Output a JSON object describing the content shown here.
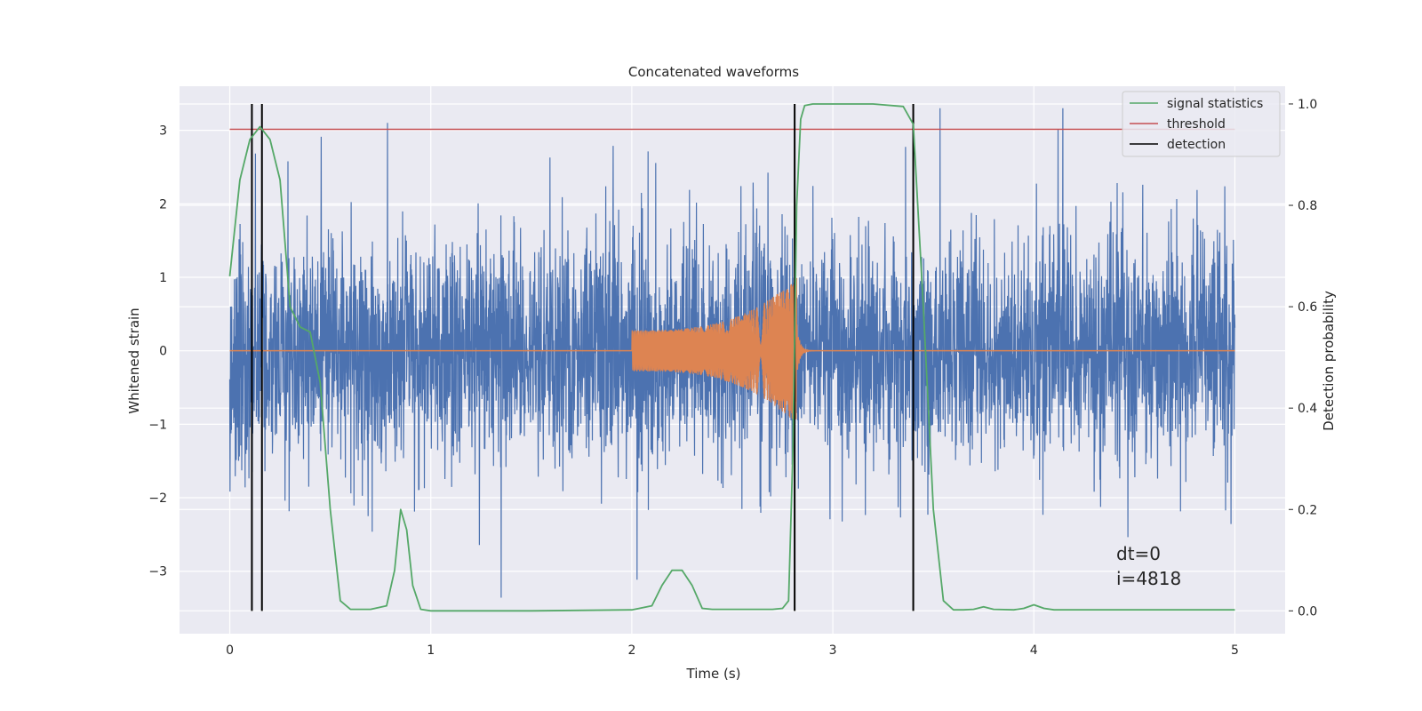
{
  "chart_data": {
    "type": "line",
    "title": "Concatenated waveforms",
    "xlabel": "Time (s)",
    "ylabel": "Whitened strain",
    "y2label": "Detection probability",
    "xlim": [
      -0.25,
      5.25
    ],
    "ylim": [
      -3.85,
      3.6
    ],
    "y2lim": [
      -0.045,
      1.035
    ],
    "x_ticks": [
      0,
      1,
      2,
      3,
      4,
      5
    ],
    "y_ticks": [
      -3,
      -2,
      -1,
      0,
      1,
      2,
      3
    ],
    "y2_ticks": [
      0.0,
      0.2,
      0.4,
      0.6,
      0.8,
      1.0
    ],
    "y_tick_labels": [
      "−3",
      "−2",
      "−1",
      "0",
      "1",
      "2",
      "3"
    ],
    "y2_tick_labels": [
      "0.0",
      "0.2",
      "0.4",
      "0.6",
      "0.8",
      "1.0"
    ],
    "grid": true,
    "legend_position": "top-right",
    "annotations": [
      "dt=0",
      "i=4818"
    ],
    "series": [
      {
        "name": "",
        "kind": "noisy strain",
        "color": "#4c72b0",
        "x_range": [
          0,
          5
        ],
        "typical_amplitude": 1.2,
        "peak_values": [
          3.3,
          -3.5
        ]
      },
      {
        "name": "",
        "kind": "injected chirp",
        "color": "#dd8452",
        "x_range": [
          2.0,
          2.82
        ],
        "envelope_start": 0.28,
        "envelope_end": 1.0
      },
      {
        "name": "signal statistics",
        "axis": "right",
        "color": "#55a868",
        "x": [
          0,
          0.05,
          0.1,
          0.15,
          0.2,
          0.25,
          0.3,
          0.35,
          0.4,
          0.45,
          0.5,
          0.55,
          0.6,
          0.7,
          0.78,
          0.82,
          0.85,
          0.88,
          0.91,
          0.95,
          1.0,
          1.5,
          2.0,
          2.1,
          2.15,
          2.2,
          2.25,
          2.3,
          2.35,
          2.4,
          2.5,
          2.7,
          2.75,
          2.78,
          2.8,
          2.82,
          2.84,
          2.86,
          2.9,
          3.0,
          3.2,
          3.35,
          3.4,
          3.45,
          3.5,
          3.55,
          3.6,
          3.65,
          3.7,
          3.75,
          3.8,
          3.9,
          3.95,
          4.0,
          4.05,
          4.1,
          4.5,
          5.0
        ],
        "values": [
          0.66,
          0.85,
          0.93,
          0.955,
          0.93,
          0.85,
          0.6,
          0.56,
          0.55,
          0.45,
          0.2,
          0.02,
          0.003,
          0.003,
          0.01,
          0.08,
          0.2,
          0.16,
          0.05,
          0.003,
          0.0,
          0.0,
          0.002,
          0.01,
          0.05,
          0.08,
          0.08,
          0.05,
          0.005,
          0.003,
          0.003,
          0.003,
          0.005,
          0.02,
          0.3,
          0.8,
          0.97,
          0.997,
          1.0,
          1.0,
          1.0,
          0.995,
          0.96,
          0.6,
          0.2,
          0.02,
          0.002,
          0.002,
          0.003,
          0.008,
          0.003,
          0.002,
          0.005,
          0.012,
          0.005,
          0.002,
          0.002,
          0.002
        ]
      },
      {
        "name": "threshold",
        "axis": "right",
        "color": "#c44e52",
        "x": [
          0,
          5
        ],
        "values": [
          0.95,
          0.95
        ]
      },
      {
        "name": "detection",
        "color": "#000000",
        "x": [
          0.11,
          0.16,
          2.81,
          3.4
        ]
      }
    ]
  }
}
